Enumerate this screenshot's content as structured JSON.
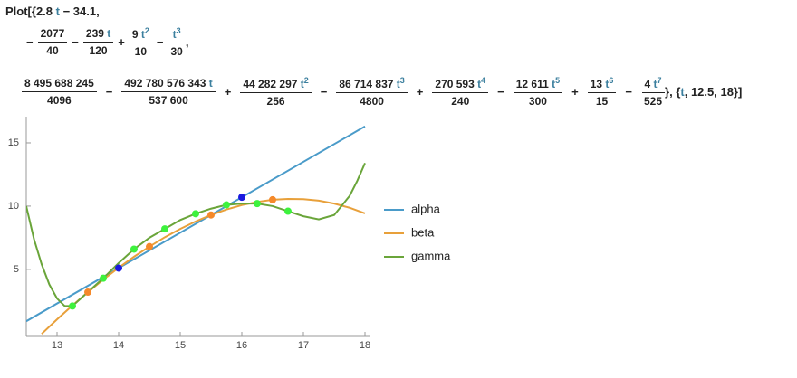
{
  "input": {
    "lines": [
      [
        {
          "t": "Plot[{"
        },
        {
          "t": "2.8 "
        },
        {
          "v": "t"
        },
        {
          "t": " − 34.1,"
        }
      ],
      [
        {
          "t": "−"
        },
        {
          "n": [
            {
              "t": "2077"
            }
          ],
          "d": "40"
        },
        {
          "t": "−"
        },
        {
          "n": [
            {
              "t": "239 "
            },
            {
              "v": "t"
            }
          ],
          "d": "120"
        },
        {
          "t": "+"
        },
        {
          "n": [
            {
              "t": "9 "
            },
            {
              "v": "t",
              "p": "2"
            }
          ],
          "d": "10"
        },
        {
          "t": "−"
        },
        {
          "n": [
            {
              "v": "t",
              "p": "3"
            }
          ],
          "d": "30"
        },
        {
          "t": ","
        }
      ],
      [
        {
          "n": [
            {
              "t": "8 495 688 245"
            }
          ],
          "d": "4096"
        },
        {
          "t": "−"
        },
        {
          "n": [
            {
              "t": "492 780 576 343 "
            },
            {
              "v": "t"
            }
          ],
          "d": "537 600"
        },
        {
          "t": "+"
        },
        {
          "n": [
            {
              "t": "44 282 297 "
            },
            {
              "v": "t",
              "p": "2"
            }
          ],
          "d": "256"
        },
        {
          "t": "−"
        },
        {
          "n": [
            {
              "t": "86 714 837 "
            },
            {
              "v": "t",
              "p": "3"
            }
          ],
          "d": "4800"
        },
        {
          "t": "+"
        },
        {
          "n": [
            {
              "t": "270 593 "
            },
            {
              "v": "t",
              "p": "4"
            }
          ],
          "d": "240"
        },
        {
          "t": "−"
        },
        {
          "n": [
            {
              "t": "12 611 "
            },
            {
              "v": "t",
              "p": "5"
            }
          ],
          "d": "300"
        },
        {
          "t": "+"
        },
        {
          "n": [
            {
              "t": "13 "
            },
            {
              "v": "t",
              "p": "6"
            }
          ],
          "d": "15"
        },
        {
          "t": "−"
        },
        {
          "n": [
            {
              "t": "4 "
            },
            {
              "v": "t",
              "p": "7"
            }
          ],
          "d": "525"
        },
        {
          "t": "}, {"
        },
        {
          "v": "t"
        },
        {
          "t": ", 12.5, 18}]"
        }
      ]
    ]
  },
  "chart_data": {
    "type": "line",
    "xlim": [
      12.5,
      18
    ],
    "ylim": [
      -0.3,
      16.5
    ],
    "xticks": [
      13,
      14,
      15,
      16,
      17,
      18
    ],
    "yticks": [
      5,
      10,
      15
    ],
    "legend": "right",
    "series": [
      {
        "name": "alpha",
        "color": "#4a9bc9",
        "x": [
          12.5,
          18
        ],
        "values": [
          0.9,
          16.3
        ]
      },
      {
        "name": "beta",
        "color": "#e8a03a",
        "x": [
          12.75,
          13,
          13.25,
          13.5,
          13.75,
          14,
          14.25,
          14.5,
          14.75,
          15,
          15.25,
          15.5,
          15.75,
          16,
          16.25,
          16.5,
          16.75,
          17,
          17.25,
          17.5,
          17.75,
          18
        ],
        "values": [
          -0.1,
          1.05,
          2.15,
          3.2,
          4.19,
          5.13,
          6.0,
          6.8,
          7.54,
          8.2,
          8.79,
          9.3,
          9.73,
          10.08,
          10.33,
          10.5,
          10.57,
          10.55,
          10.43,
          10.2,
          9.87,
          9.43
        ]
      },
      {
        "name": "gamma",
        "color": "#6aa53a",
        "x": [
          12.5,
          12.625,
          12.75,
          12.875,
          13,
          13.125,
          13.25,
          13.5,
          13.75,
          14,
          14.25,
          14.5,
          14.75,
          15,
          15.25,
          15.5,
          15.75,
          16,
          16.25,
          16.5,
          16.75,
          17,
          17.25,
          17.5,
          17.75,
          17.875,
          18
        ],
        "values": [
          10.0,
          7.4,
          5.4,
          3.8,
          2.7,
          2.1,
          2.1,
          3.2,
          4.3,
          5.5,
          6.6,
          7.5,
          8.2,
          8.9,
          9.4,
          9.8,
          10.1,
          10.2,
          10.2,
          10.0,
          9.6,
          9.2,
          8.95,
          9.3,
          10.8,
          12.0,
          13.4
        ]
      }
    ],
    "points": [
      {
        "color": "#1a1ae0",
        "x": [
          14,
          16
        ],
        "values": [
          5.1,
          10.7
        ]
      },
      {
        "color": "#f5892a",
        "x": [
          13.5,
          14.5,
          15.5,
          16.5
        ],
        "values": [
          3.2,
          6.8,
          9.3,
          10.5
        ]
      },
      {
        "color": "#3df23d",
        "x": [
          13.25,
          13.75,
          14.25,
          14.75,
          15.25,
          15.75,
          16.25,
          16.75
        ],
        "values": [
          2.1,
          4.3,
          6.6,
          8.2,
          9.4,
          10.1,
          10.2,
          9.6
        ]
      }
    ]
  }
}
